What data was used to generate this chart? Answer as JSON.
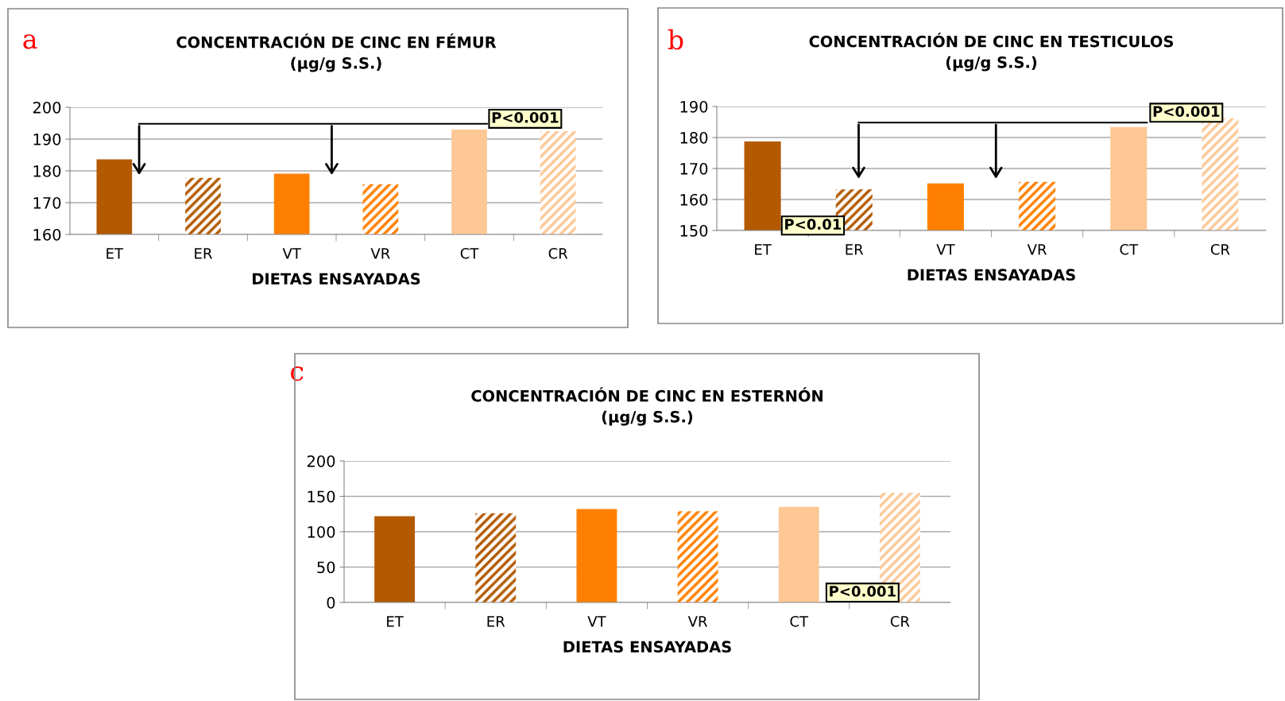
{
  "chart_data": [
    {
      "type": "bar",
      "title": "CONCENTRACIÓN DE CINC EN FÉMUR\n(µg/g S.S.)",
      "xlabel": "DIETAS ENSAYADAS",
      "categories": [
        "ET",
        "ER",
        "VT",
        "VR",
        "CT",
        "CR"
      ],
      "series": [
        {
          "colors": [
            "#b35900",
            "#b35900",
            "#ff8000",
            "#ff8000",
            "#fdc896",
            "#fdc896"
          ],
          "values": [
            183.6,
            null,
            179.1,
            null,
            193.0,
            null
          ]
        },
        {
          "colors": [
            "#b35900",
            "#b35900",
            "#ff8000",
            "#ff8000",
            "#fdc896",
            "#fdc896"
          ],
          "values": [
            null,
            177.8,
            null,
            175.8,
            null,
            192.5
          ]
        }
      ],
      "ylim": [
        160,
        200
      ],
      "yticks": [
        160,
        170,
        180,
        190,
        200
      ],
      "grid": "y",
      "annotations": [
        "a",
        "P<0.001"
      ]
    },
    {
      "type": "bar",
      "title": "CONCENTRACIÓN DE CINC EN TESTICULOS\n(µg/g S.S.)",
      "xlabel": "DIETAS ENSAYADAS",
      "categories": [
        "ET",
        "ER",
        "VT",
        "VR",
        "CT",
        "CR"
      ],
      "series": [
        {
          "colors": [
            "#b35900",
            "#b35900",
            "#ff8000",
            "#ff8000",
            "#fdc896",
            "#fdc896"
          ],
          "values": [
            178.7,
            null,
            165.2,
            null,
            183.4,
            null
          ]
        },
        {
          "colors": [
            "#b35900",
            "#b35900",
            "#ff8000",
            "#ff8000",
            "#fdc896",
            "#fdc896"
          ],
          "values": [
            null,
            163.3,
            null,
            165.7,
            null,
            186.2
          ]
        }
      ],
      "ylim": [
        150,
        190
      ],
      "yticks": [
        150,
        160,
        170,
        180,
        190
      ],
      "grid": "y",
      "annotations": [
        "b",
        "P<0.001",
        "P<0.01"
      ]
    },
    {
      "type": "bar",
      "title": "CONCENTRACIÓN DE CINC EN ESTERNÓN\n(µg/g S.S.)",
      "xlabel": "DIETAS ENSAYADAS",
      "categories": [
        "ET",
        "ER",
        "VT",
        "VR",
        "CT",
        "CR"
      ],
      "series": [
        {
          "colors": [
            "#b35900",
            "#b35900",
            "#ff8000",
            "#ff8000",
            "#fdc896",
            "#fdc896"
          ],
          "values": [
            122,
            null,
            132,
            null,
            135,
            null
          ]
        },
        {
          "colors": [
            "#b35900",
            "#b35900",
            "#ff8000",
            "#ff8000",
            "#fdc896",
            "#fdc896"
          ],
          "values": [
            null,
            126,
            null,
            129,
            null,
            155
          ]
        }
      ],
      "ylim": [
        0,
        200
      ],
      "yticks": [
        0,
        50,
        100,
        150,
        200
      ],
      "grid": "y",
      "annotations": [
        "c",
        "P<0.001"
      ]
    }
  ]
}
